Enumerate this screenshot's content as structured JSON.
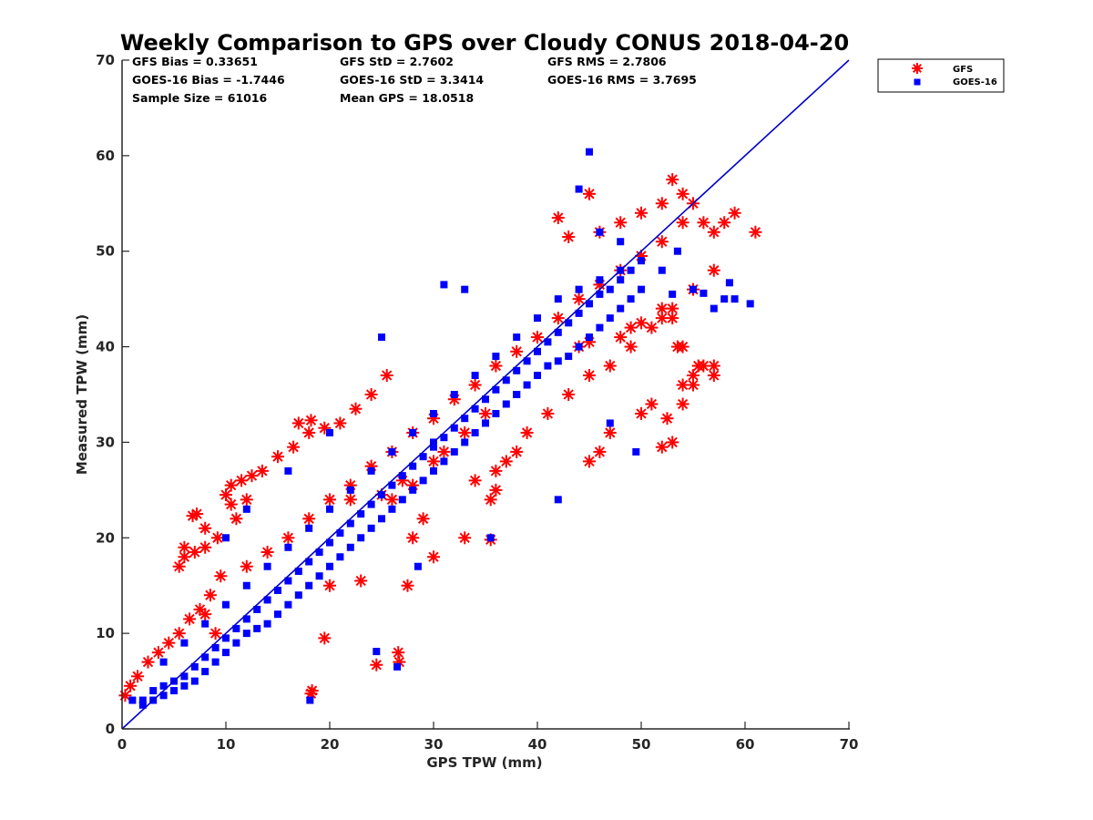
{
  "chart_data": {
    "type": "scatter",
    "title": "Weekly Comparison to GPS over Cloudy CONUS 2018-04-20",
    "xlabel": "GPS TPW (mm)",
    "ylabel": "Measured TPW (mm)",
    "xlim": [
      0,
      70
    ],
    "ylim": [
      0,
      70
    ],
    "xticks": [
      "0",
      "10",
      "20",
      "30",
      "40",
      "50",
      "60",
      "70"
    ],
    "yticks": [
      "0",
      "10",
      "20",
      "30",
      "40",
      "50",
      "60",
      "70"
    ],
    "grid": false,
    "legend_position": "outside-top-right",
    "reference_line": {
      "x": [
        0,
        70
      ],
      "y": [
        0,
        70
      ],
      "color": "#0000cc"
    },
    "stats": [
      "GFS Bias = 0.33651",
      "GOES-16 Bias = -1.7446",
      "Sample Size = 61016",
      "GFS StD = 2.7602",
      "GOES-16 StD = 3.3414",
      "Mean GPS = 18.0518",
      "GFS RMS = 2.7806",
      "GOES-16 RMS = 3.7695"
    ],
    "series": [
      {
        "name": "GFS",
        "marker": "asterisk",
        "color": "#ff0000",
        "x": [
          0.3,
          0.8,
          1.5,
          2.5,
          3.5,
          4.5,
          5.5,
          6.5,
          7.5,
          8.5,
          6.8,
          7.2,
          8.0,
          9.2,
          10.5,
          11.5,
          12.5,
          13.5,
          15,
          16.5,
          18,
          19.5,
          21,
          22.5,
          24,
          25.5,
          17,
          18.2,
          10,
          10.5,
          11,
          12,
          9.5,
          5.5,
          6,
          7,
          8,
          6,
          12,
          14,
          16,
          18,
          20,
          22,
          24,
          26,
          28,
          30,
          32,
          34,
          36,
          38,
          40,
          42,
          44,
          46,
          48,
          50,
          52,
          54,
          26,
          27,
          30,
          31,
          33,
          35,
          28,
          29,
          34,
          36,
          37,
          38,
          39,
          41,
          43,
          45,
          47,
          49,
          51,
          53,
          55,
          57,
          42,
          43,
          45,
          46,
          48,
          50,
          52,
          53,
          54,
          55,
          56,
          57,
          58,
          59,
          61,
          52,
          53,
          56,
          57,
          54,
          55,
          50,
          51,
          52,
          53,
          52.5,
          54,
          55,
          57,
          53.5,
          18.2,
          18.3,
          24.5,
          26.6,
          26.7,
          27.5,
          19.5,
          35.5,
          22,
          25,
          28,
          35.5,
          36,
          45,
          46,
          47,
          44,
          45,
          48,
          49,
          50,
          52,
          54,
          55.5,
          8,
          9,
          20,
          23,
          30,
          33
        ],
        "y": [
          3.5,
          4.5,
          5.5,
          7,
          8,
          9,
          10,
          11.5,
          12.5,
          14,
          22.3,
          22.5,
          21,
          20,
          25.5,
          26,
          26.5,
          27,
          28.5,
          29.5,
          31,
          31.5,
          32,
          33.5,
          35,
          37,
          32,
          32.3,
          24.5,
          23.5,
          22,
          24,
          16,
          17,
          18,
          18.5,
          19,
          19,
          17,
          18.5,
          20,
          22,
          24,
          25.5,
          27.5,
          29,
          31,
          32.5,
          34.5,
          36,
          38,
          39.5,
          41,
          43,
          45,
          46.5,
          48,
          49.5,
          51,
          53,
          24,
          26,
          28,
          29,
          31,
          33,
          20,
          22,
          26,
          27,
          28,
          29,
          31,
          33,
          35,
          37,
          38,
          40,
          42,
          44,
          46,
          48,
          53.5,
          51.5,
          56,
          52,
          53,
          54,
          55,
          57.5,
          56,
          55,
          53,
          52,
          53,
          54,
          52,
          44,
          43,
          38,
          37,
          36,
          37,
          33,
          34,
          29.5,
          30,
          32.5,
          34,
          36,
          38,
          40,
          3.7,
          4,
          6.7,
          8,
          7,
          15,
          9.5,
          19.8,
          24,
          24.5,
          25.5,
          24,
          25,
          28,
          29,
          31,
          40,
          40.5,
          41,
          42,
          42.5,
          43,
          40,
          38,
          12,
          10,
          15,
          15.5,
          18,
          20
        ]
      },
      {
        "name": "GOES-16",
        "marker": "square",
        "color": "#0000ff",
        "x": [
          1,
          2,
          3,
          4,
          5,
          6,
          7,
          8,
          9,
          10,
          11,
          12,
          13,
          14,
          15,
          16,
          17,
          18,
          19,
          20,
          21,
          22,
          23,
          24,
          25,
          26,
          27,
          28,
          29,
          30,
          31,
          32,
          33,
          34,
          35,
          36,
          37,
          38,
          39,
          40,
          41,
          42,
          43,
          44,
          45,
          46,
          47,
          48,
          49,
          50,
          2,
          3,
          4,
          5,
          6,
          7,
          8,
          9,
          10,
          11,
          12,
          13,
          14,
          15,
          16,
          17,
          18,
          19,
          20,
          21,
          22,
          23,
          24,
          25,
          26,
          27,
          28,
          29,
          30,
          31,
          32,
          33,
          34,
          35,
          36,
          37,
          38,
          39,
          40,
          41,
          42,
          43,
          44,
          45,
          46,
          47,
          48,
          49,
          50,
          4,
          6,
          8,
          10,
          12,
          14,
          16,
          18,
          20,
          22,
          24,
          26,
          28,
          30,
          32,
          34,
          36,
          38,
          40,
          42,
          44,
          46,
          48,
          45,
          44,
          46,
          48,
          52,
          55,
          58,
          59,
          60.5,
          58.5,
          57,
          56,
          53.5,
          53,
          24.5,
          26.5,
          18.1,
          35.5,
          28.5,
          33,
          31,
          25,
          20,
          16,
          12,
          10,
          47,
          49.5,
          38,
          42,
          30
        ],
        "y": [
          3,
          3,
          4,
          4.5,
          5,
          5.5,
          6.5,
          7.5,
          8.5,
          9.5,
          10.5,
          11.5,
          12.5,
          13.5,
          14.5,
          15.5,
          16.5,
          17.5,
          18.5,
          19.5,
          20.5,
          21.5,
          22.5,
          23.5,
          24.5,
          25.5,
          26.5,
          27.5,
          28.5,
          29.5,
          30.5,
          31.5,
          32.5,
          33.5,
          34.5,
          35.5,
          36.5,
          37.5,
          38.5,
          39.5,
          40.5,
          41.5,
          42.5,
          43.5,
          44.5,
          45.5,
          46,
          47,
          48,
          49,
          2.5,
          3,
          3.5,
          4,
          4.5,
          5,
          6,
          7,
          8,
          9,
          10,
          10.5,
          11,
          12,
          13,
          14,
          15,
          16,
          17,
          18,
          19,
          20,
          21,
          22,
          23,
          24,
          25,
          26,
          27,
          28,
          29,
          30,
          31,
          32,
          33,
          34,
          35,
          36,
          37,
          38,
          38.5,
          39,
          40,
          41,
          42,
          43,
          44,
          45,
          46,
          7,
          9,
          11,
          13,
          15,
          17,
          19,
          21,
          23,
          25,
          27,
          29,
          31,
          33,
          35,
          37,
          39,
          41,
          43,
          45,
          46,
          47,
          48,
          60.4,
          56.5,
          52,
          51,
          48,
          46,
          45,
          45,
          44.5,
          46.7,
          44,
          45.6,
          50,
          45.5,
          8.1,
          6.5,
          3,
          20,
          17,
          46,
          46.5,
          41,
          31,
          27,
          23,
          20,
          32,
          29,
          35,
          24,
          30
        ]
      }
    ]
  }
}
